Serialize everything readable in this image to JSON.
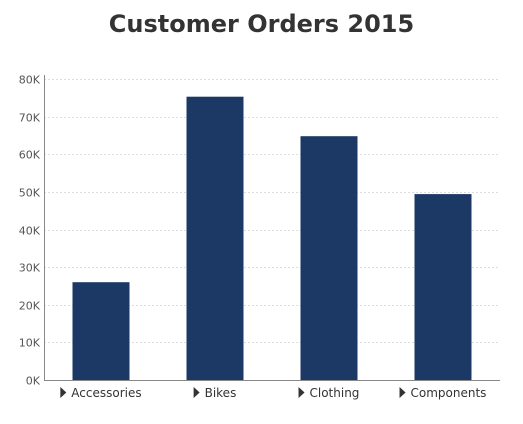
{
  "chart_data": {
    "type": "bar",
    "title": "Customer Orders 2015",
    "categories": [
      "Accessories",
      "Bikes",
      "Clothing",
      "Components"
    ],
    "values": [
      26000,
      75300,
      64800,
      49400
    ],
    "xlabel": "",
    "ylabel": "",
    "ylim": [
      0,
      80000
    ],
    "yticks": [
      0,
      10000,
      20000,
      30000,
      40000,
      50000,
      60000,
      70000,
      80000
    ],
    "ytick_labels": [
      "0K",
      "10K",
      "20K",
      "30K",
      "40K",
      "50K",
      "60K",
      "70K",
      "80K"
    ],
    "grid": true,
    "legend": "none",
    "bar_color": "#1c3966",
    "category_marker": "expand-triangle"
  }
}
